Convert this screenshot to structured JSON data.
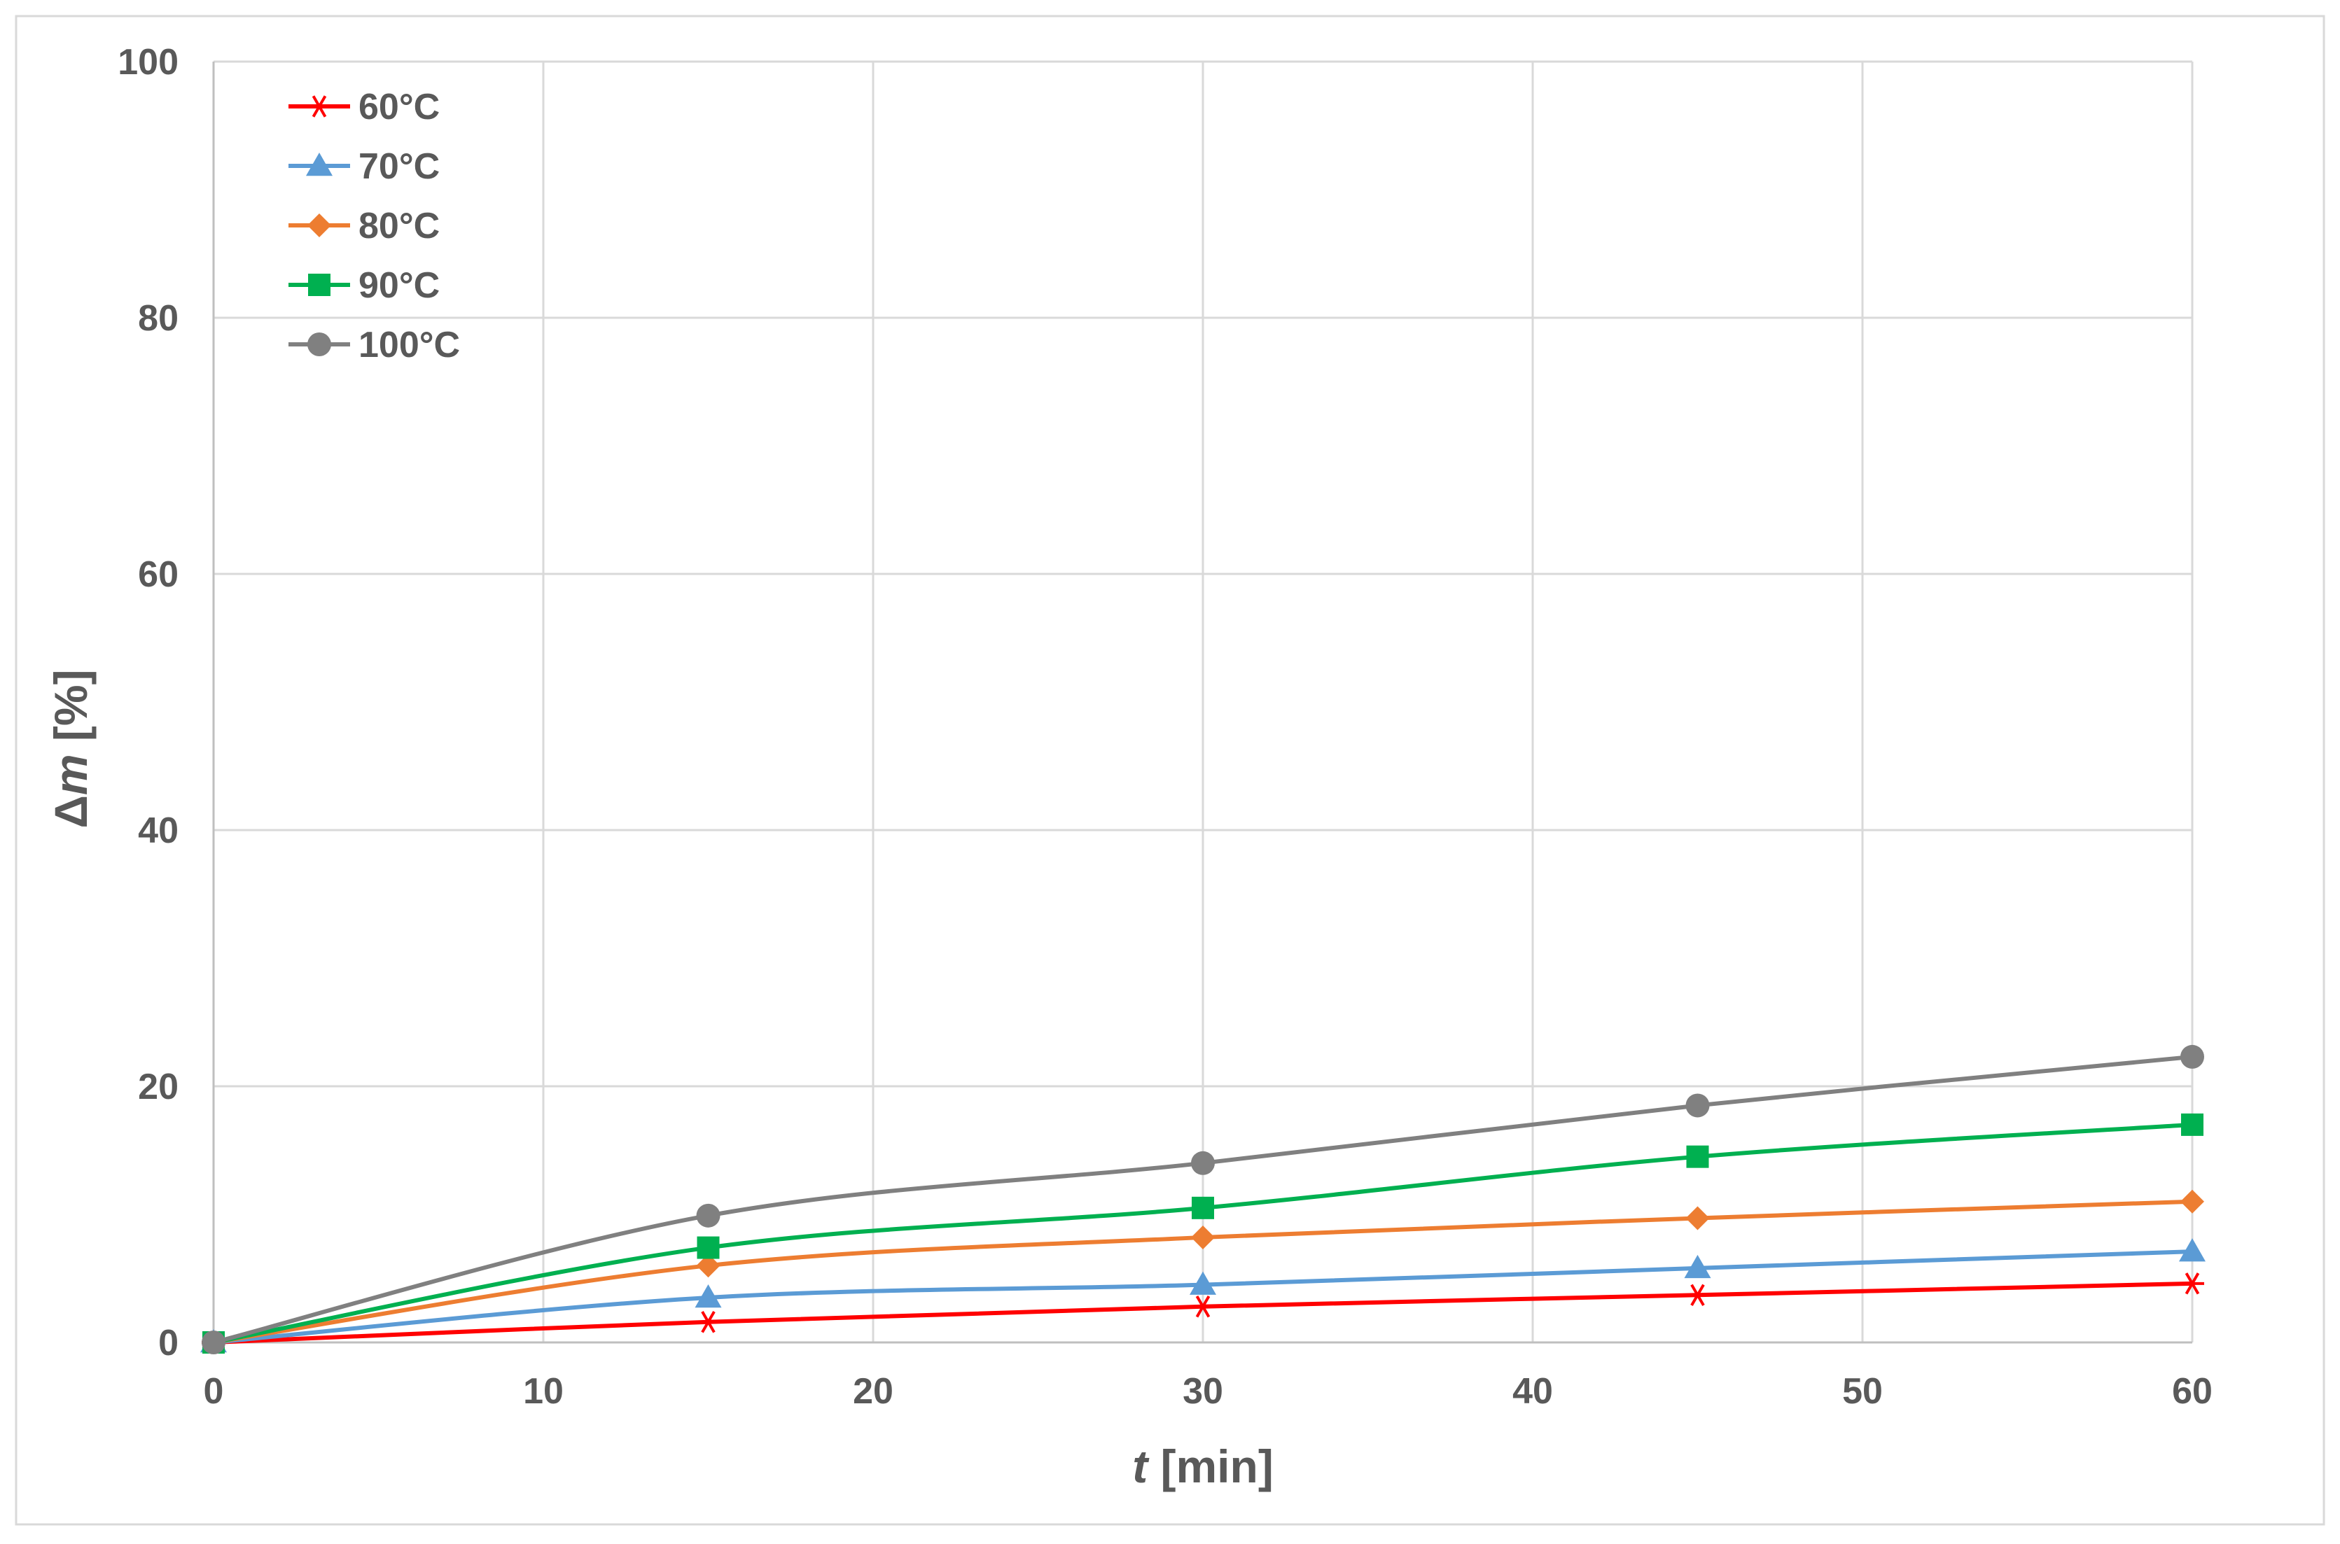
{
  "chart_data": {
    "type": "line",
    "xlabel_italic": "t",
    "xlabel_rest": " [min]",
    "ylabel_prefix": "Δ",
    "ylabel_italic": "m",
    "ylabel_rest": " [%]",
    "xlim": [
      0,
      60
    ],
    "ylim": [
      0,
      100
    ],
    "x_ticks": [
      0,
      10,
      20,
      30,
      40,
      50,
      60
    ],
    "y_ticks": [
      0,
      20,
      40,
      60,
      80,
      100
    ],
    "grid": true,
    "legend_position": "top-left",
    "x": [
      0,
      15,
      30,
      45,
      60
    ],
    "series": [
      {
        "name": "60°C",
        "color": "#ff0000",
        "marker": "star",
        "values": [
          0,
          1.6,
          2.8,
          3.7,
          4.6
        ]
      },
      {
        "name": "70°C",
        "color": "#5b9bd5",
        "marker": "triangle",
        "values": [
          0,
          3.5,
          4.5,
          5.8,
          7.1
        ]
      },
      {
        "name": "80°C",
        "color": "#ed7d31",
        "marker": "diamond",
        "values": [
          0,
          6.0,
          8.2,
          9.7,
          11.0
        ]
      },
      {
        "name": "90°C",
        "color": "#00b050",
        "marker": "square",
        "values": [
          0,
          7.4,
          10.5,
          14.5,
          17.0
        ]
      },
      {
        "name": "100°C",
        "color": "#808080",
        "marker": "circle",
        "values": [
          0,
          9.9,
          14.0,
          18.5,
          22.3
        ]
      }
    ]
  }
}
